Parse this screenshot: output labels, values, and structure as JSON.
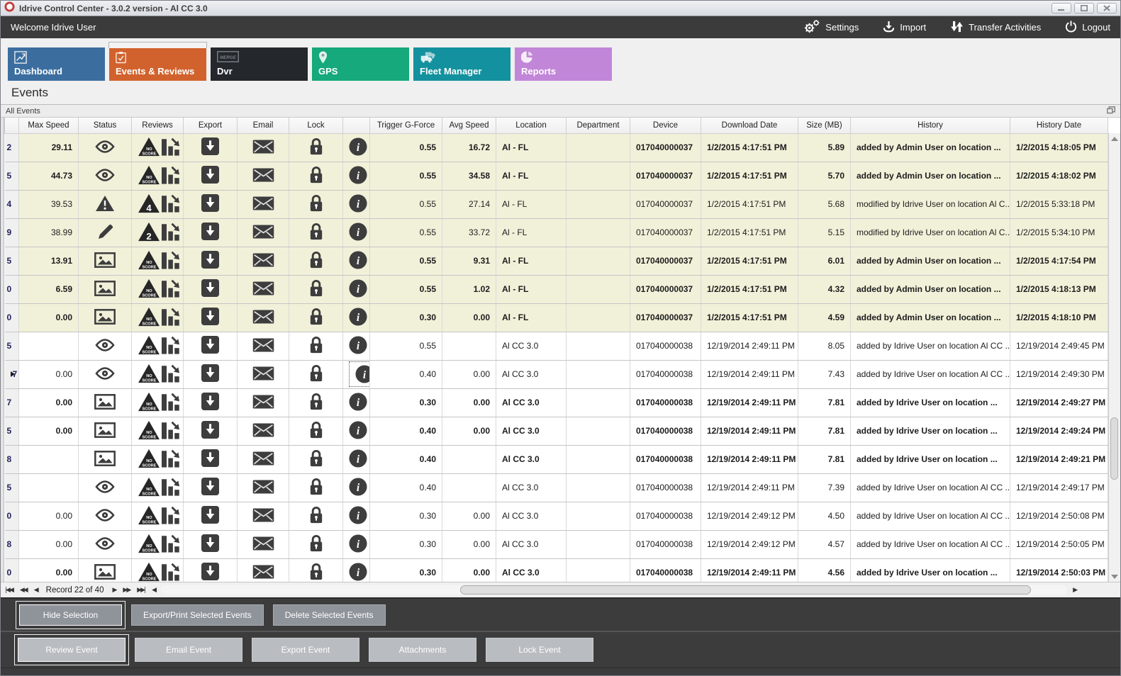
{
  "window": {
    "title": "Idrive Control Center - 3.0.2 version - Al CC 3.0"
  },
  "topbar": {
    "welcome": "Welcome Idrive User",
    "menu": [
      {
        "label": "Settings",
        "icon": "settings-gears-icon"
      },
      {
        "label": "Import",
        "icon": "import-download-icon"
      },
      {
        "label": "Transfer Activities",
        "icon": "transfer-arrows-icon"
      },
      {
        "label": "Logout",
        "icon": "logout-power-icon"
      }
    ]
  },
  "tabs": [
    {
      "label": "Dashboard",
      "color": "#3b6e9f",
      "icon": "dashboard-chart-icon",
      "active": false
    },
    {
      "label": "Events & Reviews",
      "color": "#d2622d",
      "icon": "events-clipboard-icon",
      "active": true
    },
    {
      "label": "Dvr",
      "color": "#24282c",
      "icon": "dvr-merge-icon",
      "active": false
    },
    {
      "label": "GPS",
      "color": "#16a97b",
      "icon": "gps-pin-icon",
      "active": false
    },
    {
      "label": "Fleet Manager",
      "color": "#13919e",
      "icon": "fleet-trucks-icon",
      "active": false
    },
    {
      "label": "Reports",
      "color": "#c186d8",
      "icon": "reports-pie-icon",
      "active": false
    }
  ],
  "page": {
    "title": "Events",
    "panel_title": "All Events"
  },
  "icons": {
    "nav_first": "|◀◀",
    "nav_prev_page": "◀◀",
    "nav_prev": "◀",
    "nav_next": "▶",
    "nav_next_page": "▶▶",
    "nav_last": "▶▶|",
    "hscroll_left": "◀",
    "hscroll_right": "▶"
  },
  "colors": {
    "topbar": "#3b3b3b",
    "row_highlight": "#f1f1da",
    "icon_dark": "#3d3d3d",
    "button_gray": "#8f939a",
    "button_light": "#b9bcc0",
    "app_logo_red": "#c23b3b"
  },
  "grid": {
    "columns": [
      "",
      "Max Speed",
      "Status",
      "Reviews",
      "Export",
      "Email",
      "Lock",
      "",
      "Trigger G-Force",
      "Avg Speed",
      "Location",
      "Department",
      "Device",
      "Download Date",
      "Size (MB)",
      "History",
      "History Date"
    ],
    "rows": [
      {
        "id": "2",
        "max_speed": "29.11",
        "status": "eye",
        "review": "NO SCORE",
        "trigger": "0.55",
        "avg": "16.72",
        "location": "Al - FL",
        "department": "",
        "device": "017040000037",
        "download_date": "1/2/2015 4:17:51 PM",
        "size": "5.89",
        "history": "added by Admin User on location ...",
        "history_date": "1/2/2015 4:18:05 PM",
        "bold": true,
        "tint": "yellow",
        "indicator": false,
        "focus_info": false
      },
      {
        "id": "5",
        "max_speed": "44.73",
        "status": "eye",
        "review": "NO SCORE",
        "trigger": "0.55",
        "avg": "34.58",
        "location": "Al - FL",
        "department": "",
        "device": "017040000037",
        "download_date": "1/2/2015 4:17:51 PM",
        "size": "5.70",
        "history": "added by Admin User on location ...",
        "history_date": "1/2/2015 4:18:02 PM",
        "bold": true,
        "tint": "yellow",
        "indicator": false,
        "focus_info": false
      },
      {
        "id": "4",
        "max_speed": "39.53",
        "status": "warning",
        "review": "4",
        "trigger": "0.55",
        "avg": "27.14",
        "location": "Al - FL",
        "department": "",
        "device": "017040000037",
        "download_date": "1/2/2015 4:17:51 PM",
        "size": "5.68",
        "history": "modified by Idrive User on location Al C...",
        "history_date": "1/2/2015 5:33:18 PM",
        "bold": false,
        "tint": "yellow",
        "indicator": false,
        "focus_info": false
      },
      {
        "id": "9",
        "max_speed": "38.99",
        "status": "pencil",
        "review": "2",
        "trigger": "0.55",
        "avg": "33.72",
        "location": "Al - FL",
        "department": "",
        "device": "017040000037",
        "download_date": "1/2/2015 4:17:51 PM",
        "size": "5.15",
        "history": "modified by Idrive User on location Al C...",
        "history_date": "1/2/2015 5:34:10 PM",
        "bold": false,
        "tint": "yellow",
        "indicator": false,
        "focus_info": false
      },
      {
        "id": "5",
        "max_speed": "13.91",
        "status": "picture",
        "review": "NO SCORE",
        "trigger": "0.55",
        "avg": "9.31",
        "location": "Al - FL",
        "department": "",
        "device": "017040000037",
        "download_date": "1/2/2015 4:17:51 PM",
        "size": "6.01",
        "history": "added by Admin User on location ...",
        "history_date": "1/2/2015 4:17:54 PM",
        "bold": true,
        "tint": "yellow",
        "indicator": false,
        "focus_info": false
      },
      {
        "id": "0",
        "max_speed": "6.59",
        "status": "picture",
        "review": "NO SCORE",
        "trigger": "0.55",
        "avg": "1.02",
        "location": "Al - FL",
        "department": "",
        "device": "017040000037",
        "download_date": "1/2/2015 4:17:51 PM",
        "size": "4.32",
        "history": "added by Admin User on location ...",
        "history_date": "1/2/2015 4:18:13 PM",
        "bold": true,
        "tint": "yellow",
        "indicator": false,
        "focus_info": false
      },
      {
        "id": "0",
        "max_speed": "0.00",
        "status": "picture",
        "review": "NO SCORE",
        "trigger": "0.30",
        "avg": "0.00",
        "location": "Al - FL",
        "department": "",
        "device": "017040000037",
        "download_date": "1/2/2015 4:17:51 PM",
        "size": "4.59",
        "history": "added by Admin User on location ...",
        "history_date": "1/2/2015 4:18:10 PM",
        "bold": true,
        "tint": "yellow",
        "indicator": false,
        "focus_info": false
      },
      {
        "id": "5",
        "max_speed": "",
        "status": "eye",
        "review": "NO SCORE",
        "trigger": "0.55",
        "avg": "",
        "location": "Al CC 3.0",
        "department": "",
        "device": "017040000038",
        "download_date": "12/19/2014 2:49:11 PM",
        "size": "8.05",
        "history": "added by Idrive User on location Al CC ...",
        "history_date": "12/19/2014 2:49:45 PM",
        "bold": false,
        "tint": "white",
        "indicator": false,
        "focus_info": false
      },
      {
        "id": "7",
        "max_speed": "0.00",
        "status": "eye",
        "review": "NO SCORE",
        "trigger": "0.40",
        "avg": "0.00",
        "location": "Al CC 3.0",
        "department": "",
        "device": "017040000038",
        "download_date": "12/19/2014 2:49:11 PM",
        "size": "7.43",
        "history": "added by Idrive User on location Al CC ...",
        "history_date": "12/19/2014 2:49:30 PM",
        "bold": false,
        "tint": "white",
        "indicator": true,
        "focus_info": true
      },
      {
        "id": "7",
        "max_speed": "0.00",
        "status": "picture",
        "review": "NO SCORE",
        "trigger": "0.30",
        "avg": "0.00",
        "location": "Al CC 3.0",
        "department": "",
        "device": "017040000038",
        "download_date": "12/19/2014 2:49:11 PM",
        "size": "7.81",
        "history": "added by Idrive User on location ...",
        "history_date": "12/19/2014 2:49:27 PM",
        "bold": true,
        "tint": "white",
        "indicator": false,
        "focus_info": false
      },
      {
        "id": "5",
        "max_speed": "0.00",
        "status": "picture",
        "review": "NO SCORE",
        "trigger": "0.40",
        "avg": "0.00",
        "location": "Al CC 3.0",
        "department": "",
        "device": "017040000038",
        "download_date": "12/19/2014 2:49:11 PM",
        "size": "7.81",
        "history": "added by Idrive User on location ...",
        "history_date": "12/19/2014 2:49:24 PM",
        "bold": true,
        "tint": "white",
        "indicator": false,
        "focus_info": false
      },
      {
        "id": "8",
        "max_speed": "",
        "status": "picture",
        "review": "NO SCORE",
        "trigger": "0.40",
        "avg": "",
        "location": "Al CC 3.0",
        "department": "",
        "device": "017040000038",
        "download_date": "12/19/2014 2:49:11 PM",
        "size": "7.81",
        "history": "added by Idrive User on location ...",
        "history_date": "12/19/2014 2:49:21 PM",
        "bold": true,
        "tint": "white",
        "indicator": false,
        "focus_info": false
      },
      {
        "id": "5",
        "max_speed": "",
        "status": "eye",
        "review": "NO SCORE",
        "trigger": "0.40",
        "avg": "",
        "location": "Al CC 3.0",
        "department": "",
        "device": "017040000038",
        "download_date": "12/19/2014 2:49:11 PM",
        "size": "7.39",
        "history": "added by Idrive User on location Al CC ...",
        "history_date": "12/19/2014 2:49:17 PM",
        "bold": false,
        "tint": "white",
        "indicator": false,
        "focus_info": false
      },
      {
        "id": "0",
        "max_speed": "0.00",
        "status": "eye",
        "review": "NO SCORE",
        "trigger": "0.30",
        "avg": "0.00",
        "location": "Al CC 3.0",
        "department": "",
        "device": "017040000038",
        "download_date": "12/19/2014 2:49:12 PM",
        "size": "4.50",
        "history": "added by Idrive User on location Al CC ...",
        "history_date": "12/19/2014 2:50:08 PM",
        "bold": false,
        "tint": "white",
        "indicator": false,
        "focus_info": false
      },
      {
        "id": "8",
        "max_speed": "0.00",
        "status": "eye",
        "review": "NO SCORE",
        "trigger": "0.30",
        "avg": "0.00",
        "location": "Al CC 3.0",
        "department": "",
        "device": "017040000038",
        "download_date": "12/19/2014 2:49:12 PM",
        "size": "4.57",
        "history": "added by Idrive User on location Al CC ...",
        "history_date": "12/19/2014 2:50:05 PM",
        "bold": false,
        "tint": "white",
        "indicator": false,
        "focus_info": false
      },
      {
        "id": "0",
        "max_speed": "0.00",
        "status": "picture",
        "review": "NO SCORE",
        "trigger": "0.30",
        "avg": "0.00",
        "location": "Al CC 3.0",
        "department": "",
        "device": "017040000038",
        "download_date": "12/19/2014 2:49:11 PM",
        "size": "4.56",
        "history": "added by Idrive User on location ...",
        "history_date": "12/19/2014 2:50:03 PM",
        "bold": true,
        "tint": "white",
        "indicator": false,
        "focus_info": false
      }
    ]
  },
  "navigator": {
    "record_text": "Record 22 of 40"
  },
  "action_bar": {
    "buttons": [
      "Hide Selection",
      "Export/Print Selected Events",
      "Delete Selected  Events"
    ]
  },
  "event_bar": {
    "buttons": [
      "Review Event",
      "Email Event",
      "Export Event",
      "Attachments",
      "Lock Event"
    ]
  }
}
